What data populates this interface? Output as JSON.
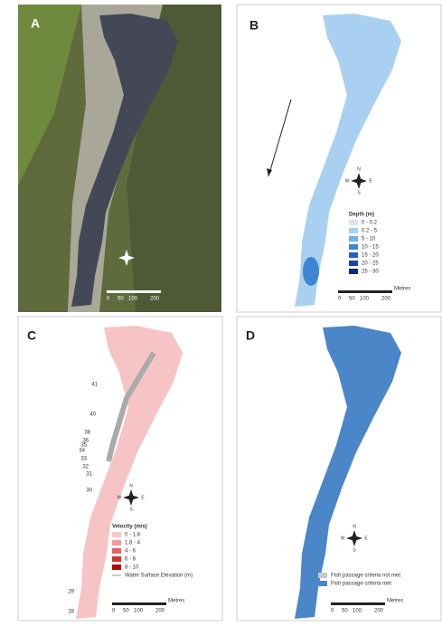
{
  "panels": [
    {
      "label": "A",
      "scale_labels": [
        "0",
        "50",
        "100",
        "200"
      ]
    },
    {
      "label": "B",
      "compass": [
        "N",
        "E",
        "S",
        "W"
      ],
      "legend_title": "Depth (m)",
      "legend": [
        {
          "label": "0 - 0.2",
          "color": "#d4e8f8"
        },
        {
          "label": "0.2 - 5",
          "color": "#a9d0f0"
        },
        {
          "label": "5 - 10",
          "color": "#6fb0e6"
        },
        {
          "label": "10 - 15",
          "color": "#3d86d4"
        },
        {
          "label": "15 - 20",
          "color": "#2a5fc0"
        },
        {
          "label": "20 - 25",
          "color": "#1c3fa6"
        },
        {
          "label": "25 - 30",
          "color": "#102488"
        }
      ],
      "scale_unit": "Metres",
      "scale_labels": [
        "0",
        "50",
        "100",
        "200"
      ]
    },
    {
      "label": "C",
      "compass": [
        "N",
        "E",
        "S",
        "W"
      ],
      "contours": [
        "41",
        "40",
        "38",
        "36",
        "35",
        "34",
        "33",
        "32",
        "31",
        "30",
        "29",
        "28"
      ],
      "legend_title": "Velocity (m/s)",
      "legend": [
        {
          "label": "0 - 1.8",
          "color": "#f8c8c8"
        },
        {
          "label": "1.8 - 4",
          "color": "#f29a9a"
        },
        {
          "label": "4 - 6",
          "color": "#e86060"
        },
        {
          "label": "6 - 8",
          "color": "#d83030"
        },
        {
          "label": "8 - 10",
          "color": "#b80000"
        }
      ],
      "line_legend": "Water Surface Elevation (m)",
      "scale_unit": "Metres",
      "scale_labels": [
        "0",
        "50",
        "100",
        "200"
      ]
    },
    {
      "label": "D",
      "compass": [
        "N",
        "E",
        "S",
        "W"
      ],
      "legend": [
        {
          "label": "Fish passage criteria not met",
          "color": "#c8c8c8"
        },
        {
          "label": "Fish passage criteria met",
          "color": "#4a86c8"
        }
      ],
      "scale_unit": "Metres",
      "scale_labels": [
        "0",
        "50",
        "100",
        "200"
      ]
    }
  ]
}
